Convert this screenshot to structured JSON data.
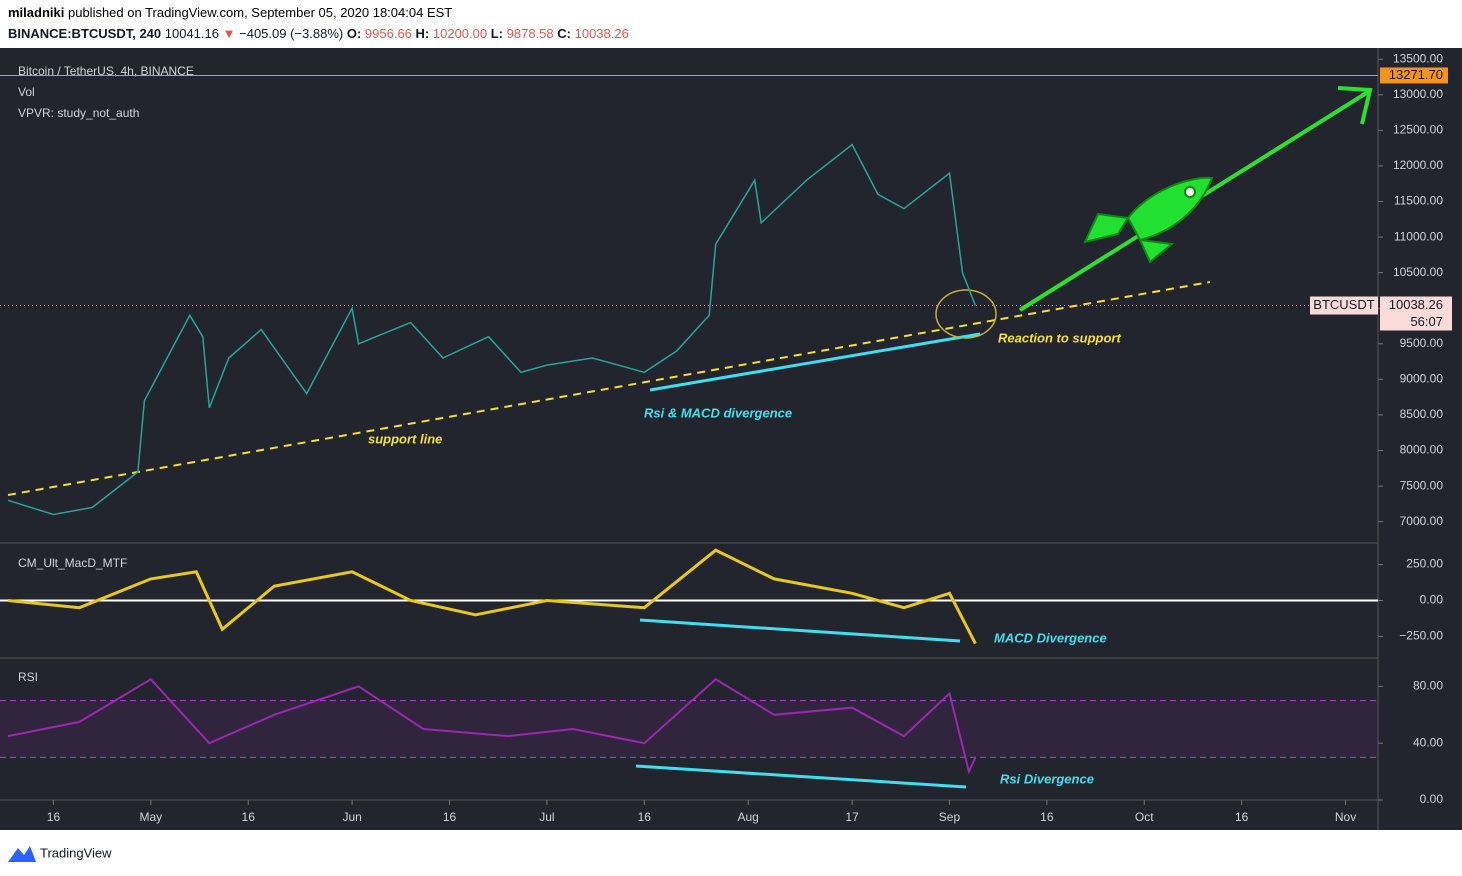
{
  "header": {
    "line1": {
      "user": "miladniki",
      "rest": "published on TradingView.com, September 05, 2020 18:04:04 EST"
    },
    "line2": [
      {
        "text": "BINANCE:BTCUSDT, 240",
        "color": "#131722",
        "bold": true
      },
      {
        "text": "10041.16",
        "color": "#131722"
      },
      {
        "text": "▼",
        "color": "#ef5350"
      },
      {
        "text": "−405.09 (−3.88%)",
        "color": "#131722"
      },
      {
        "text": "O:",
        "color": "#131722",
        "bold": true
      },
      {
        "text": "9956.66",
        "color": "#ef5350"
      },
      {
        "text": "H:",
        "color": "#131722",
        "bold": true
      },
      {
        "text": "10200.00",
        "color": "#ef5350"
      },
      {
        "text": "L:",
        "color": "#131722",
        "bold": true
      },
      {
        "text": "9878.58",
        "color": "#ef5350"
      },
      {
        "text": "C:",
        "color": "#131722",
        "bold": true
      },
      {
        "text": "10038.26",
        "color": "#ef5350"
      }
    ]
  },
  "legend": [
    "Bitcoin / TetherUS, 4h, BINANCE",
    "Vol",
    "VPVR: study_not_auth"
  ],
  "xlim": [
    "2020-04-09",
    "2020-11-06"
  ],
  "xticks": [
    {
      "value": "2020-04-16",
      "label": "16"
    },
    {
      "value": "2020-05-01",
      "label": "May"
    },
    {
      "value": "2020-05-16",
      "label": "16"
    },
    {
      "value": "2020-06-01",
      "label": "Jun"
    },
    {
      "value": "2020-06-16",
      "label": "16"
    },
    {
      "value": "2020-07-01",
      "label": "Jul"
    },
    {
      "value": "2020-07-16",
      "label": "16"
    },
    {
      "value": "2020-08-01",
      "label": "Aug"
    },
    {
      "value": "2020-08-17",
      "label": "17"
    },
    {
      "value": "2020-09-01",
      "label": "Sep"
    },
    {
      "value": "2020-09-16",
      "label": "16"
    },
    {
      "value": "2020-10-01",
      "label": "Oct"
    },
    {
      "value": "2020-10-16",
      "label": "16"
    },
    {
      "value": "2020-11-01",
      "label": "Nov"
    }
  ],
  "price": {
    "color": "#26a69a",
    "ylim": [
      6700,
      13700
    ],
    "yticks": [
      {
        "value": 7000,
        "label": "7000.00"
      },
      {
        "value": 7500,
        "label": "7500.00"
      },
      {
        "value": 8000,
        "label": "8000.00"
      },
      {
        "value": 8500,
        "label": "8500.00"
      },
      {
        "value": 9000,
        "label": "9000.00"
      },
      {
        "value": 9500,
        "label": "9500.00"
      },
      {
        "value": 10000,
        "label": "10000.00"
      },
      {
        "value": 10500,
        "label": "10500.00"
      },
      {
        "value": 11000,
        "label": "11000.00"
      },
      {
        "value": 11500,
        "label": "11500.00"
      },
      {
        "value": 12000,
        "label": "12000.00"
      },
      {
        "value": 12500,
        "label": "12500.00"
      },
      {
        "value": 13000,
        "label": "13000.00"
      },
      {
        "value": 13500,
        "label": "13500.00"
      }
    ],
    "x": [
      "2020-04-09",
      "2020-04-16",
      "2020-04-22",
      "2020-04-29",
      "2020-04-30",
      "2020-05-07",
      "2020-05-09",
      "2020-05-10",
      "2020-05-13",
      "2020-05-18",
      "2020-05-25",
      "2020-06-01",
      "2020-06-02",
      "2020-06-10",
      "2020-06-15",
      "2020-06-22",
      "2020-06-27",
      "2020-07-01",
      "2020-07-08",
      "2020-07-16",
      "2020-07-21",
      "2020-07-26",
      "2020-07-27",
      "2020-08-02",
      "2020-08-03",
      "2020-08-10",
      "2020-08-17",
      "2020-08-21",
      "2020-08-25",
      "2020-09-01",
      "2020-09-03",
      "2020-09-05"
    ],
    "values": [
      7300,
      7100,
      7200,
      7700,
      8700,
      9900,
      9600,
      8600,
      9300,
      9700,
      8800,
      10000,
      9500,
      9800,
      9300,
      9600,
      9100,
      9200,
      9300,
      9100,
      9400,
      9900,
      10900,
      11800,
      11200,
      11800,
      12300,
      11600,
      11400,
      11900,
      10500,
      10038.26
    ],
    "price_line": {
      "value": 13271.7,
      "label": "13271.70",
      "color": "#f7931a"
    },
    "last": {
      "symbol": "BTCUSDT",
      "value": 10038.26,
      "countdown": "56:07"
    }
  },
  "macd": {
    "title": "CM_Ult_MacD_MTF",
    "color": "#e8c81a",
    "ylim": [
      -400,
      400
    ],
    "yticks": [
      {
        "value": 250,
        "label": "250.00"
      },
      {
        "value": 0,
        "label": "0.00"
      },
      {
        "value": -250,
        "label": "−250.00"
      }
    ],
    "x": [
      "2020-04-09",
      "2020-04-20",
      "2020-05-01",
      "2020-05-08",
      "2020-05-12",
      "2020-05-20",
      "2020-06-01",
      "2020-06-10",
      "2020-06-20",
      "2020-07-01",
      "2020-07-16",
      "2020-07-27",
      "2020-08-05",
      "2020-08-17",
      "2020-08-25",
      "2020-09-01",
      "2020-09-05"
    ],
    "values": [
      0,
      -50,
      150,
      200,
      -200,
      100,
      200,
      0,
      -100,
      0,
      -50,
      350,
      150,
      50,
      -50,
      50,
      -300
    ]
  },
  "rsi": {
    "title": "RSI",
    "color": "#9c27b0",
    "ylim": [
      0,
      100
    ],
    "bands": [
      30,
      70
    ],
    "yticks": [
      {
        "value": 0,
        "label": "0.00"
      },
      {
        "value": 40,
        "label": "40.00"
      },
      {
        "value": 80,
        "label": "80.00"
      }
    ],
    "x": [
      "2020-04-09",
      "2020-04-20",
      "2020-05-01",
      "2020-05-10",
      "2020-05-20",
      "2020-06-02",
      "2020-06-12",
      "2020-06-25",
      "2020-07-05",
      "2020-07-16",
      "2020-07-27",
      "2020-08-05",
      "2020-08-17",
      "2020-08-25",
      "2020-09-01",
      "2020-09-04",
      "2020-09-05"
    ],
    "values": [
      45,
      55,
      85,
      40,
      60,
      80,
      50,
      45,
      50,
      40,
      85,
      60,
      65,
      45,
      75,
      20,
      30
    ]
  },
  "annotations": {
    "support": "support line",
    "divergence": "Rsi & MACD divergence",
    "reaction": "Reaction to support",
    "macd_div": "MACD Divergence",
    "rsi_div": "Rsi Divergence"
  },
  "footer": "TradingView"
}
